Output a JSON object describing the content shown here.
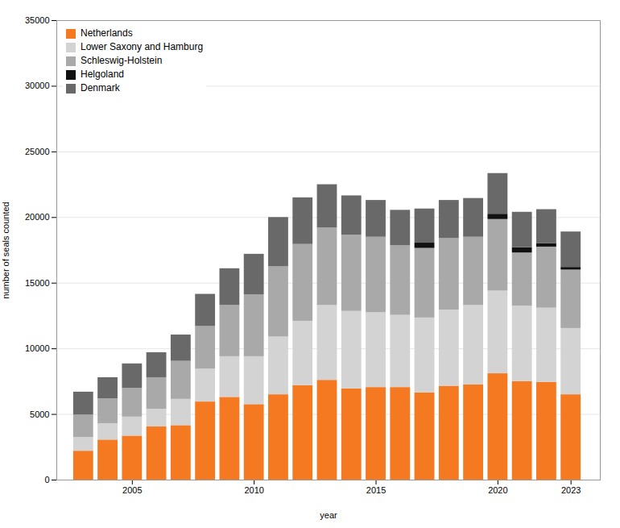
{
  "chart_data": {
    "type": "bar",
    "stacked": true,
    "xlabel": "year",
    "ylabel": "number of seals counted",
    "x": [
      2003,
      2004,
      2005,
      2006,
      2007,
      2008,
      2009,
      2010,
      2011,
      2012,
      2013,
      2014,
      2015,
      2016,
      2017,
      2018,
      2019,
      2020,
      2021,
      2022,
      2023
    ],
    "series": [
      {
        "name": "Netherlands",
        "color": "#F47920",
        "values": [
          2200,
          3050,
          3350,
          4050,
          4150,
          5950,
          6300,
          5750,
          6500,
          7200,
          7600,
          6950,
          7050,
          7050,
          6650,
          7150,
          7250,
          8100,
          7500,
          7450,
          6500
        ]
      },
      {
        "name": "Lower Saxony and Hamburg",
        "color": "#D3D3D3",
        "values": [
          1050,
          1250,
          1450,
          1350,
          2000,
          2500,
          3100,
          3650,
          4400,
          4900,
          5700,
          5900,
          5700,
          5500,
          5700,
          5800,
          6050,
          6300,
          5750,
          5650,
          5050
        ]
      },
      {
        "name": "Schleswig-Holstein",
        "color": "#A9A9A9",
        "values": [
          1700,
          1900,
          2200,
          2400,
          2900,
          3250,
          3900,
          4700,
          5350,
          5850,
          5900,
          5800,
          5750,
          5300,
          5300,
          5450,
          5200,
          5450,
          4050,
          4650,
          4450
        ]
      },
      {
        "name": "Helgoland",
        "color": "#111111",
        "values": [
          0,
          0,
          0,
          0,
          0,
          0,
          0,
          0,
          0,
          0,
          0,
          0,
          0,
          0,
          400,
          0,
          0,
          400,
          400,
          250,
          200
        ]
      },
      {
        "name": "Denmark",
        "color": "#696969",
        "values": [
          1750,
          1600,
          1850,
          1900,
          2000,
          2450,
          2800,
          3100,
          3750,
          3550,
          3300,
          3000,
          2800,
          2700,
          2600,
          2900,
          2950,
          3100,
          2700,
          2600,
          2700
        ]
      }
    ],
    "xlim": [
      2001.9,
      2024.2
    ],
    "xticks": [
      2005,
      2010,
      2015,
      2020,
      2023
    ],
    "ylim": [
      0,
      35000
    ],
    "yticks": [
      0,
      5000,
      10000,
      15000,
      20000,
      25000,
      30000,
      35000
    ],
    "grid": true,
    "legend": "upper left"
  }
}
